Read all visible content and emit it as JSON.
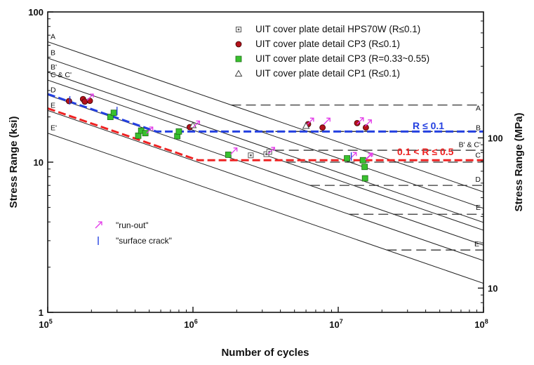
{
  "chart_data": {
    "type": "scatter",
    "title": "",
    "xlabel": "Number of cycles",
    "ylabel": "Stress Range (ksi)",
    "ylabel_right": "Stress Range (MPa)",
    "x_scale": "log",
    "y_scale": "log",
    "xlim": [
      100000,
      100000000
    ],
    "ylim": [
      1,
      100
    ],
    "x_ticks": [
      {
        "value": 100000,
        "base": "10",
        "exp": "5"
      },
      {
        "value": 1000000,
        "base": "10",
        "exp": "6"
      },
      {
        "value": 10000000,
        "base": "10",
        "exp": "7"
      },
      {
        "value": 100000000,
        "base": "10",
        "exp": "8"
      }
    ],
    "y_ticks": [
      {
        "value": 1,
        "label": "1"
      },
      {
        "value": 10,
        "label": "10"
      },
      {
        "value": 100,
        "label": "100"
      }
    ],
    "y_right_ticks": [
      {
        "value": 10,
        "label": "10"
      },
      {
        "value": 100,
        "label": "100"
      }
    ],
    "legend_position": "top-right",
    "legend": [
      {
        "label": "UIT cover plate detail HPS70W (R≤0.1)",
        "marker": "dot-square",
        "color": "#555555"
      },
      {
        "label": "UIT cover plate detail CP3 (R≤0.1)",
        "marker": "circle",
        "color": "#b3121b"
      },
      {
        "label": "UIT cover plate detail CP3 (R=0.33~0.55)",
        "marker": "square",
        "color": "#39c12e"
      },
      {
        "label": "UIT cover plate detail CP1 (R≤0.1)",
        "marker": "triangle",
        "color": "#444444"
      }
    ],
    "design_curves": [
      {
        "name": "A",
        "y_at_1e5": 63.3,
        "cafl": 24
      },
      {
        "name": "B",
        "y_at_1e5": 49.3,
        "cafl": 16
      },
      {
        "name": "B'",
        "y_at_1e5": 39.7,
        "cafl": 12
      },
      {
        "name": "C & C'",
        "y_at_1e5": 35.2,
        "cafl": 10
      },
      {
        "name": "D",
        "y_at_1e5": 28.0,
        "cafl": 7
      },
      {
        "name": "E",
        "y_at_1e5": 22.1,
        "cafl": 4.5
      },
      {
        "name": "E'",
        "y_at_1e5": 15.6,
        "cafl": 2.6
      }
    ],
    "right_labels": [
      {
        "text": "A",
        "y": 22
      },
      {
        "text": "B",
        "y": 16.3
      },
      {
        "text": "B' & C'",
        "y": 12.6
      },
      {
        "text": "C",
        "y": 10.7
      },
      {
        "text": "D",
        "y": 7.4
      },
      {
        "text": "E",
        "y": 4.8
      },
      {
        "text": "E'",
        "y": 2.75
      }
    ],
    "fit_lines": [
      {
        "label": "R ≤ 0.1",
        "color": "#2440e0",
        "y_at_1e5": 28.4,
        "plateau": 16
      },
      {
        "label": "0.1 < R ≤ 0.5",
        "color": "#ee2222",
        "y_at_1e5": 22.8,
        "plateau": 10.3
      }
    ],
    "series": [
      {
        "name": "HPS70W",
        "marker": "dot-square",
        "color": "#555555",
        "points": [
          [
            2500000,
            11.1
          ],
          [
            3200000,
            11.3
          ],
          [
            3350000,
            11.7
          ]
        ]
      },
      {
        "name": "CP3 R≤0.1",
        "marker": "circle",
        "color": "#b3121b",
        "points": [
          [
            140000,
            25.5
          ],
          [
            175000,
            26.3
          ],
          [
            180000,
            25.3
          ],
          [
            195000,
            25.6
          ],
          [
            950000,
            17.1
          ],
          [
            6200000,
            17.9
          ],
          [
            7800000,
            17.0
          ],
          [
            13500000,
            18.2
          ],
          [
            15500000,
            17.0
          ]
        ]
      },
      {
        "name": "CP3 R=0.33~0.55",
        "marker": "square",
        "color": "#39c12e",
        "points": [
          [
            270000,
            20.0
          ],
          [
            285000,
            21.3
          ],
          [
            420000,
            15.0
          ],
          [
            440000,
            16.2
          ],
          [
            470000,
            15.6
          ],
          [
            780000,
            14.9
          ],
          [
            800000,
            16.0
          ],
          [
            1750000,
            11.2
          ],
          [
            11500000,
            10.6
          ],
          [
            14800000,
            10.3
          ],
          [
            15200000,
            9.3
          ],
          [
            15300000,
            7.8
          ]
        ]
      },
      {
        "name": "CP1",
        "marker": "triangle",
        "color": "#444444",
        "points": [
          [
            1000000,
            17.6
          ],
          [
            6000000,
            17.4
          ]
        ]
      }
    ],
    "run_out_points": [
      [
        195000,
        27.2
      ],
      [
        500000,
        16.4
      ],
      [
        1050000,
        18.0
      ],
      [
        1900000,
        11.9
      ],
      [
        3450000,
        12.0
      ],
      [
        6400000,
        18.8
      ],
      [
        8300000,
        18.8
      ],
      [
        12600000,
        11.1
      ],
      [
        14100000,
        18.9
      ],
      [
        16000000,
        18.3
      ],
      [
        16000000,
        10.9
      ],
      [
        16300000,
        11.0
      ]
    ],
    "surface_crack_points": [
      [
        142000,
        25.8
      ],
      [
        300000,
        21.9
      ],
      [
        12300000,
        10.9
      ]
    ],
    "annotation_legend": [
      {
        "symbol": "run-out",
        "text": "\"run-out\"",
        "color": "#e23ae8"
      },
      {
        "symbol": "surface-crack",
        "text": "\"surface crack\"",
        "color": "#2440e0"
      }
    ],
    "grid": false
  }
}
